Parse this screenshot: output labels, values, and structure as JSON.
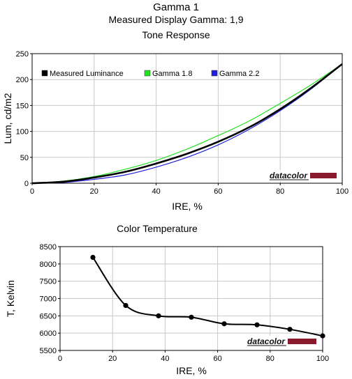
{
  "header": {
    "title": "Gamma 1",
    "subtitle": "Measured Display Gamma: 1,9"
  },
  "watermark": {
    "text": "datacolor",
    "bar_color": "#8a1a2e"
  },
  "chart_data": [
    {
      "type": "line",
      "title": "Tone Response",
      "xlabel": "IRE, %",
      "ylabel": "Lum, cd/m2",
      "xlim": [
        0,
        100
      ],
      "ylim": [
        0,
        250
      ],
      "xticks": [
        "0",
        "20",
        "40",
        "60",
        "80",
        "100"
      ],
      "yticks": [
        "0",
        "50",
        "100",
        "150",
        "200",
        "250"
      ],
      "legend_position": "top-left",
      "grid": true,
      "series": [
        {
          "name": "Measured Luminance",
          "color": "#000000",
          "x": [
            0,
            10,
            20,
            30,
            40,
            50,
            60,
            70,
            80,
            90,
            100
          ],
          "y": [
            0,
            3,
            11,
            22,
            38,
            57,
            80,
            108,
            143,
            184,
            230
          ]
        },
        {
          "name": "Gamma 1.8",
          "color": "#22e022",
          "x": [
            0,
            10,
            20,
            30,
            40,
            50,
            60,
            70,
            80,
            90,
            100
          ],
          "y": [
            0,
            4,
            13,
            27,
            44,
            66,
            92,
            120,
            154,
            190,
            230
          ]
        },
        {
          "name": "Gamma 2.2",
          "color": "#2020e0",
          "x": [
            0,
            10,
            20,
            30,
            40,
            50,
            60,
            70,
            80,
            90,
            100
          ],
          "y": [
            0,
            1.5,
            7.5,
            16,
            31,
            50,
            74,
            104,
            140,
            182,
            230
          ]
        }
      ]
    },
    {
      "type": "line",
      "title": "Color Temperature",
      "xlabel": "IRE, %",
      "ylabel": "T, Kelvin",
      "xlim": [
        0,
        100
      ],
      "ylim": [
        5500,
        8500
      ],
      "xticks": [
        "0",
        "20",
        "40",
        "60",
        "80",
        "100"
      ],
      "yticks": [
        "5500",
        "6000",
        "6500",
        "7000",
        "7500",
        "8000",
        "8500"
      ],
      "grid": true,
      "series": [
        {
          "color": "#000000",
          "x": [
            12.5,
            25,
            37.5,
            50,
            62.5,
            75,
            87.5,
            100
          ],
          "y": [
            8190,
            6800,
            6500,
            6460,
            6270,
            6240,
            6110,
            5920
          ]
        }
      ]
    }
  ]
}
